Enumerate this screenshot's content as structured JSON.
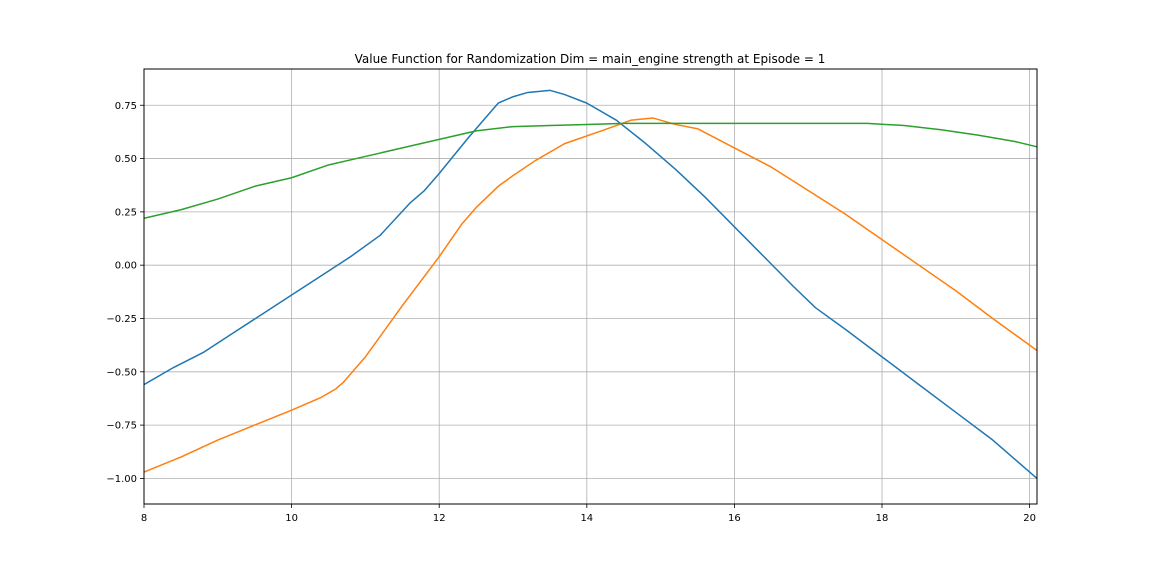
{
  "chart_data": {
    "type": "line",
    "title": "Value Function for Randomization Dim = main_engine strength at Episode = 1",
    "xlabel": "",
    "ylabel": "",
    "xlim": [
      8,
      20.1
    ],
    "ylim": [
      -1.12,
      0.92
    ],
    "x_ticks": [
      8,
      10,
      12,
      14,
      16,
      18,
      20
    ],
    "y_ticks": [
      0.75,
      0.5,
      0.25,
      0.0,
      -0.25,
      -0.5,
      -0.75,
      -1.0
    ],
    "x_tick_labels": [
      "8",
      "10",
      "12",
      "14",
      "16",
      "18",
      "20"
    ],
    "y_tick_labels": [
      "0.75",
      "0.50",
      "0.25",
      "0.00",
      "−0.25",
      "−0.50",
      "−0.75",
      "−1.00"
    ],
    "grid": true,
    "legend": "none",
    "series": [
      {
        "color": "#1f77b4",
        "points": [
          [
            8.0,
            -0.56
          ],
          [
            8.4,
            -0.48
          ],
          [
            8.8,
            -0.41
          ],
          [
            9.2,
            -0.32
          ],
          [
            9.6,
            -0.23
          ],
          [
            10.0,
            -0.14
          ],
          [
            10.4,
            -0.05
          ],
          [
            10.8,
            0.04
          ],
          [
            11.2,
            0.14
          ],
          [
            11.6,
            0.29
          ],
          [
            11.8,
            0.35
          ],
          [
            12.0,
            0.43
          ],
          [
            12.4,
            0.6
          ],
          [
            12.8,
            0.76
          ],
          [
            13.0,
            0.79
          ],
          [
            13.2,
            0.81
          ],
          [
            13.5,
            0.82
          ],
          [
            13.7,
            0.8
          ],
          [
            14.0,
            0.76
          ],
          [
            14.4,
            0.68
          ],
          [
            14.8,
            0.57
          ],
          [
            15.2,
            0.45
          ],
          [
            15.6,
            0.32
          ],
          [
            16.0,
            0.18
          ],
          [
            16.4,
            0.04
          ],
          [
            16.8,
            -0.1
          ],
          [
            17.1,
            -0.2
          ],
          [
            17.5,
            -0.3
          ],
          [
            18.0,
            -0.43
          ],
          [
            18.5,
            -0.56
          ],
          [
            19.0,
            -0.69
          ],
          [
            19.5,
            -0.82
          ],
          [
            20.1,
            -1.0
          ]
        ]
      },
      {
        "color": "#ff7f0e",
        "points": [
          [
            8.0,
            -0.97
          ],
          [
            8.5,
            -0.9
          ],
          [
            9.0,
            -0.82
          ],
          [
            9.5,
            -0.75
          ],
          [
            10.0,
            -0.68
          ],
          [
            10.4,
            -0.62
          ],
          [
            10.6,
            -0.58
          ],
          [
            10.7,
            -0.55
          ],
          [
            11.0,
            -0.43
          ],
          [
            11.5,
            -0.19
          ],
          [
            12.0,
            0.04
          ],
          [
            12.3,
            0.19
          ],
          [
            12.5,
            0.27
          ],
          [
            12.8,
            0.37
          ],
          [
            13.0,
            0.42
          ],
          [
            13.3,
            0.49
          ],
          [
            13.7,
            0.57
          ],
          [
            14.2,
            0.63
          ],
          [
            14.6,
            0.68
          ],
          [
            14.9,
            0.69
          ],
          [
            15.2,
            0.66
          ],
          [
            15.5,
            0.64
          ],
          [
            16.0,
            0.55
          ],
          [
            16.5,
            0.46
          ],
          [
            17.0,
            0.35
          ],
          [
            17.5,
            0.24
          ],
          [
            18.0,
            0.12
          ],
          [
            18.5,
            0.0
          ],
          [
            19.0,
            -0.12
          ],
          [
            19.5,
            -0.25
          ],
          [
            20.1,
            -0.4
          ]
        ]
      },
      {
        "color": "#2ca02c",
        "points": [
          [
            8.0,
            0.22
          ],
          [
            8.5,
            0.26
          ],
          [
            9.0,
            0.31
          ],
          [
            9.5,
            0.37
          ],
          [
            10.0,
            0.41
          ],
          [
            10.5,
            0.47
          ],
          [
            11.0,
            0.51
          ],
          [
            11.5,
            0.55
          ],
          [
            12.0,
            0.59
          ],
          [
            12.5,
            0.63
          ],
          [
            13.0,
            0.65
          ],
          [
            13.5,
            0.655
          ],
          [
            14.0,
            0.66
          ],
          [
            14.5,
            0.665
          ],
          [
            15.0,
            0.665
          ],
          [
            16.0,
            0.665
          ],
          [
            17.0,
            0.665
          ],
          [
            17.8,
            0.665
          ],
          [
            18.3,
            0.655
          ],
          [
            18.8,
            0.635
          ],
          [
            19.3,
            0.61
          ],
          [
            19.8,
            0.58
          ],
          [
            20.1,
            0.555
          ]
        ]
      }
    ]
  }
}
